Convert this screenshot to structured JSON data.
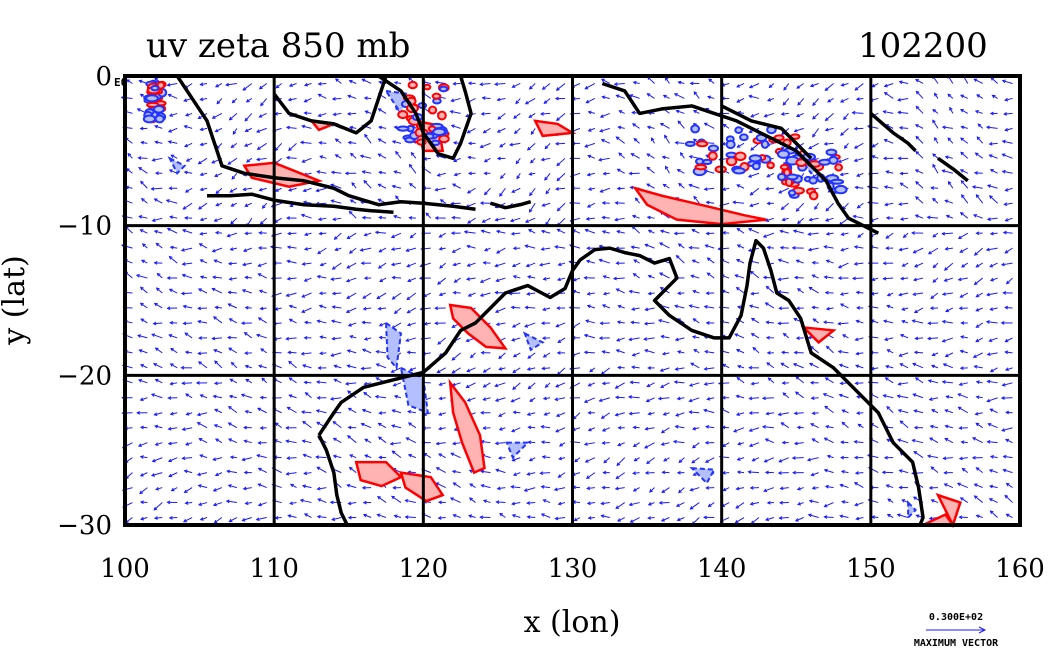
{
  "chart_data": {
    "type": "vector_field_contour_map",
    "title": "uv zeta 850 mb",
    "time_label": "102200",
    "xlabel": "x (lon)",
    "ylabel": "y (lat)",
    "xlim": [
      100,
      160
    ],
    "ylim": [
      -30,
      0
    ],
    "x_ticks": [
      "100",
      "110",
      "120",
      "130",
      "140",
      "150",
      "160"
    ],
    "y_ticks": [
      "0",
      "−10",
      "−20",
      "−30"
    ],
    "y_tick_values": [
      0,
      -10,
      -20,
      -30
    ],
    "x_tick_values": [
      100,
      110,
      120,
      130,
      140,
      150,
      160
    ],
    "grid": true,
    "corner_label": "E0",
    "reference_vector": {
      "value_text": "0.300E+02",
      "label": "MAXIMUM VECTOR"
    },
    "colors": {
      "vectors": "#1a1aff",
      "positive_contour": "#ff0000",
      "positive_fill": "#ffb3b3",
      "negative_contour": "#2233ff",
      "negative_fill": "#b3bfff",
      "coastline": "#000000"
    },
    "coastline_segments_lonlat": [
      [
        [
          103.5,
          0
        ],
        [
          104.5,
          -1.5
        ],
        [
          105.5,
          -3
        ],
        [
          106,
          -4.5
        ],
        [
          106.5,
          -6
        ],
        [
          108,
          -6.5
        ],
        [
          110,
          -6.8
        ],
        [
          112,
          -7
        ],
        [
          114,
          -7.5
        ],
        [
          115,
          -8
        ],
        [
          116,
          -8.3
        ],
        [
          117,
          -8.6
        ],
        [
          118.5,
          -8.4
        ],
        [
          120,
          -8.5
        ],
        [
          121,
          -8.6
        ],
        [
          122,
          -8.7
        ],
        [
          123.5,
          -8.9
        ]
      ],
      [
        [
          105.5,
          -8
        ],
        [
          107,
          -8
        ],
        [
          108.5,
          -7.9
        ],
        [
          110,
          -8.3
        ],
        [
          112,
          -8.6
        ],
        [
          114,
          -8.7
        ],
        [
          115.5,
          -8.9
        ],
        [
          116.5,
          -9
        ],
        [
          118,
          -9.1
        ]
      ],
      [
        [
          117,
          0
        ],
        [
          118.5,
          -1
        ],
        [
          119.5,
          -2.5
        ],
        [
          120,
          -3.8
        ],
        [
          121,
          -5.2
        ],
        [
          122,
          -5.5
        ],
        [
          122.5,
          -4.5
        ],
        [
          123.2,
          -2.5
        ],
        [
          122.8,
          -1
        ],
        [
          122.5,
          0
        ]
      ],
      [
        [
          110,
          -1.2
        ],
        [
          111,
          -2.5
        ],
        [
          112.5,
          -3
        ],
        [
          114,
          -3.2
        ],
        [
          115.5,
          -3.8
        ],
        [
          116.5,
          -3
        ],
        [
          117,
          -1.5
        ],
        [
          117.5,
          0
        ]
      ],
      [
        [
          124.5,
          -8.5
        ],
        [
          125.5,
          -8.8
        ],
        [
          126.5,
          -8.6
        ],
        [
          127.2,
          -8.4
        ]
      ],
      [
        [
          132,
          -0.5
        ],
        [
          133.5,
          -1
        ],
        [
          134.5,
          -2.5
        ],
        [
          136,
          -2.2
        ],
        [
          138,
          -2
        ],
        [
          139.5,
          -2.5
        ],
        [
          141,
          -3
        ],
        [
          143,
          -4
        ],
        [
          145,
          -5
        ],
        [
          146,
          -6
        ],
        [
          147,
          -7
        ],
        [
          147.8,
          -8.5
        ],
        [
          148.5,
          -9.5
        ],
        [
          150.5,
          -10.5
        ]
      ],
      [
        [
          140,
          -2
        ],
        [
          142,
          -3
        ],
        [
          144,
          -3.5
        ],
        [
          145,
          -4.5
        ],
        [
          146,
          -5.5
        ]
      ],
      [
        [
          113,
          -24
        ],
        [
          114,
          -22.5
        ],
        [
          114.5,
          -21.8
        ],
        [
          116,
          -20.8
        ],
        [
          118,
          -20.3
        ],
        [
          120,
          -19.8
        ],
        [
          121.5,
          -18.5
        ],
        [
          122.5,
          -17
        ],
        [
          123.5,
          -16.5
        ],
        [
          124.5,
          -15.5
        ],
        [
          125.5,
          -14.5
        ],
        [
          127,
          -14
        ],
        [
          128.5,
          -14.8
        ],
        [
          129.5,
          -14.2
        ],
        [
          130,
          -13
        ],
        [
          130.5,
          -12.3
        ],
        [
          131.5,
          -11.6
        ],
        [
          132.5,
          -11.5
        ],
        [
          133.5,
          -11.8
        ],
        [
          134.5,
          -12
        ],
        [
          135.5,
          -12.5
        ],
        [
          136.5,
          -12.2
        ],
        [
          137,
          -13.5
        ],
        [
          136,
          -14.5
        ],
        [
          135.5,
          -15
        ],
        [
          136.5,
          -16
        ],
        [
          138,
          -17
        ],
        [
          139.5,
          -17.5
        ],
        [
          140.5,
          -17.5
        ],
        [
          141.3,
          -16
        ],
        [
          141.7,
          -14
        ],
        [
          141.9,
          -12.5
        ],
        [
          142.3,
          -11
        ],
        [
          142.8,
          -11.5
        ],
        [
          143.3,
          -13
        ],
        [
          143.7,
          -14.5
        ],
        [
          144.5,
          -15
        ],
        [
          145.3,
          -16.2
        ],
        [
          146,
          -18.5
        ],
        [
          147.5,
          -19.5
        ],
        [
          149,
          -21
        ],
        [
          150.5,
          -22.5
        ],
        [
          151.5,
          -24.5
        ],
        [
          152.8,
          -25.8
        ],
        [
          153.2,
          -27.5
        ],
        [
          153.5,
          -29.5
        ],
        [
          153.3,
          -30
        ]
      ],
      [
        [
          113,
          -24
        ],
        [
          113.5,
          -25
        ],
        [
          114,
          -26.5
        ],
        [
          114.2,
          -28
        ],
        [
          114.5,
          -29.2
        ],
        [
          114.9,
          -30
        ]
      ],
      [
        [
          150,
          -2.5
        ],
        [
          151.5,
          -3.8
        ],
        [
          152.5,
          -4.5
        ],
        [
          153,
          -5
        ]
      ],
      [
        [
          154.5,
          -5.5
        ],
        [
          155.5,
          -6.2
        ],
        [
          156.5,
          -7
        ]
      ]
    ],
    "positive_regions_lonlat": [
      [
        [
          108,
          -6
        ],
        [
          110,
          -5.8
        ],
        [
          113,
          -7
        ],
        [
          111,
          -7.4
        ],
        [
          108.5,
          -6.8
        ]
      ],
      [
        [
          134.2,
          -7.5
        ],
        [
          136,
          -8
        ],
        [
          139,
          -8.7
        ],
        [
          141.5,
          -9.3
        ],
        [
          143,
          -9.6
        ],
        [
          140,
          -9.9
        ],
        [
          137,
          -9.6
        ],
        [
          135,
          -8.6
        ]
      ],
      [
        [
          121.8,
          -15.3
        ],
        [
          123.2,
          -15.5
        ],
        [
          124.5,
          -16.8
        ],
        [
          125.5,
          -18.2
        ],
        [
          124.2,
          -18.1
        ],
        [
          123,
          -17.2
        ],
        [
          122,
          -16.2
        ]
      ],
      [
        [
          121.8,
          -20.5
        ],
        [
          122.8,
          -21.8
        ],
        [
          123.8,
          -24
        ],
        [
          124.1,
          -26.2
        ],
        [
          123.4,
          -26.5
        ],
        [
          122.6,
          -24.5
        ],
        [
          122,
          -22.5
        ]
      ],
      [
        [
          115.5,
          -25.8
        ],
        [
          117.5,
          -25.8
        ],
        [
          118.5,
          -26.8
        ],
        [
          117.2,
          -27.4
        ],
        [
          115.8,
          -27
        ]
      ],
      [
        [
          118.5,
          -26.5
        ],
        [
          120.5,
          -26.8
        ],
        [
          121.3,
          -28
        ],
        [
          120.2,
          -28.4
        ],
        [
          118.8,
          -27.5
        ]
      ],
      [
        [
          119.5,
          -3
        ],
        [
          121,
          -3.3
        ],
        [
          121.3,
          -5
        ],
        [
          120,
          -5
        ]
      ],
      [
        [
          127.5,
          -3
        ],
        [
          129,
          -3.2
        ],
        [
          130,
          -3.8
        ],
        [
          128,
          -4
        ]
      ],
      [
        [
          112.5,
          -3
        ],
        [
          114,
          -3.2
        ],
        [
          113,
          -3.6
        ]
      ],
      [
        [
          145.5,
          -16.8
        ],
        [
          147.5,
          -17
        ],
        [
          146.5,
          -17.8
        ]
      ],
      [
        [
          153.5,
          -30
        ],
        [
          155,
          -29.3
        ],
        [
          155.5,
          -30
        ]
      ],
      [
        [
          154.5,
          -28
        ],
        [
          156,
          -28.5
        ],
        [
          155.5,
          -30
        ]
      ]
    ],
    "negative_regions_lonlat": [
      [
        [
          117.5,
          -16.5
        ],
        [
          118.5,
          -17.2
        ],
        [
          118.2,
          -19.5
        ],
        [
          117.6,
          -18.8
        ]
      ],
      [
        [
          118.5,
          -19.5
        ],
        [
          120,
          -20.2
        ],
        [
          120.3,
          -22.5
        ],
        [
          119,
          -22
        ]
      ],
      [
        [
          126.8,
          -17.2
        ],
        [
          128,
          -17.8
        ],
        [
          127.2,
          -18.3
        ]
      ],
      [
        [
          125.6,
          -24.5
        ],
        [
          127,
          -24.5
        ],
        [
          126,
          -25.5
        ]
      ],
      [
        [
          138,
          -26.2
        ],
        [
          139.5,
          -26.3
        ],
        [
          139,
          -27.2
        ]
      ],
      [
        [
          117.5,
          -1
        ],
        [
          119,
          -1.2
        ],
        [
          118.5,
          -2.5
        ]
      ],
      [
        [
          145,
          -5.2
        ],
        [
          147,
          -5.8
        ],
        [
          146,
          -6.5
        ]
      ],
      [
        [
          103,
          -5.5
        ],
        [
          104,
          -6
        ],
        [
          103.5,
          -6.5
        ]
      ],
      [
        [
          152.5,
          -28.5
        ],
        [
          153,
          -29
        ],
        [
          152.5,
          -29.5
        ]
      ]
    ],
    "speckle_regions_lonlat": [
      [
        137.5,
        -3.5,
        146,
        -6.5
      ],
      [
        118.5,
        -0.5,
        121.5,
        -4.5
      ],
      [
        144,
        -5,
        148,
        -8
      ],
      [
        101.5,
        -0.5,
        102.5,
        -3
      ]
    ]
  }
}
